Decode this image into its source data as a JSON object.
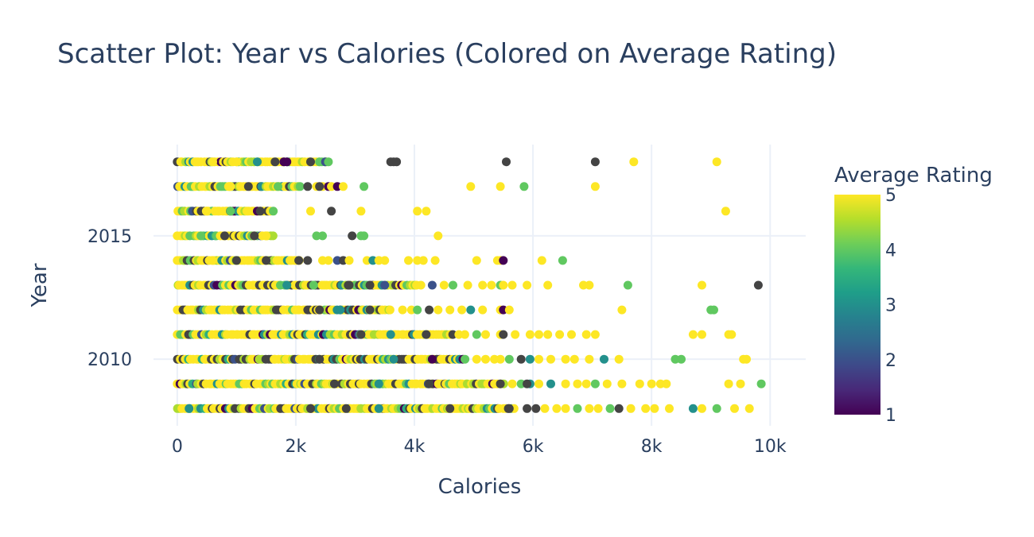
{
  "chart_data": {
    "type": "scatter",
    "title": "Scatter Plot: Year vs Calories (Colored on Average Rating)",
    "xlabel": "Calories",
    "ylabel": "Year",
    "xlim": [
      -400,
      10600
    ],
    "ylim": [
      2007.3,
      2018.7
    ],
    "x_ticks": [
      0,
      2000,
      4000,
      6000,
      8000,
      10000
    ],
    "x_tick_labels": [
      "0",
      "2k",
      "4k",
      "6k",
      "8k",
      "10k"
    ],
    "y_ticks": [
      2010,
      2015
    ],
    "y_tick_labels": [
      "2010",
      "2015"
    ],
    "grid": true,
    "colorbar": {
      "title": "Average Rating",
      "range": [
        1,
        5
      ],
      "ticks": [
        1,
        2,
        3,
        4,
        5
      ],
      "tick_labels": [
        "1",
        "2",
        "3",
        "4",
        "5"
      ],
      "colorscale": [
        "#440154",
        "#482878",
        "#3e4989",
        "#31688e",
        "#26828e",
        "#1f9e89",
        "#35b779",
        "#6ece58",
        "#b5de2b",
        "#fde725"
      ],
      "missing_color": "#444444"
    },
    "points": [
      {
        "year": 2018,
        "max_calories": 2550,
        "samples": [
          [
            2250,
            0
          ],
          [
            2400,
            4
          ],
          [
            2500,
            2
          ],
          [
            2550,
            4
          ],
          [
            1650,
            0
          ],
          [
            1800,
            1
          ],
          [
            1850,
            1
          ],
          [
            3600,
            0
          ],
          [
            3650,
            0
          ],
          [
            3700,
            0
          ],
          [
            5550,
            0
          ],
          [
            7050,
            0
          ],
          [
            7700,
            5
          ],
          [
            9100,
            5
          ],
          [
            300,
            5
          ],
          [
            600,
            5
          ],
          [
            1000,
            5
          ],
          [
            1350,
            3
          ]
        ]
      },
      {
        "year": 2017,
        "max_calories": 2100,
        "samples": [
          [
            2350,
            5
          ],
          [
            2450,
            5
          ],
          [
            2550,
            1
          ],
          [
            2600,
            5
          ],
          [
            2700,
            1
          ],
          [
            2800,
            5
          ],
          [
            3150,
            4
          ],
          [
            2200,
            0
          ],
          [
            2400,
            0
          ],
          [
            4950,
            5
          ],
          [
            5450,
            5
          ],
          [
            5850,
            4
          ],
          [
            7050,
            5
          ],
          [
            1700,
            4
          ],
          [
            1200,
            0
          ],
          [
            900,
            5
          ]
        ]
      },
      {
        "year": 2016,
        "max_calories": 1650,
        "samples": [
          [
            2250,
            5
          ],
          [
            2600,
            0
          ],
          [
            3100,
            5
          ],
          [
            4050,
            5
          ],
          [
            4200,
            5
          ],
          [
            9250,
            5
          ],
          [
            1350,
            1
          ],
          [
            1400,
            0
          ],
          [
            900,
            4
          ],
          [
            500,
            5
          ]
        ]
      },
      {
        "year": 2015,
        "max_calories": 1650,
        "samples": [
          [
            2350,
            4
          ],
          [
            2450,
            4
          ],
          [
            2950,
            0
          ],
          [
            3100,
            4
          ],
          [
            3150,
            4
          ],
          [
            4400,
            5
          ],
          [
            1300,
            0
          ],
          [
            800,
            0
          ],
          [
            400,
            4
          ],
          [
            1500,
            5
          ]
        ]
      },
      {
        "year": 2014,
        "max_calories": 2100,
        "samples": [
          [
            2050,
            0
          ],
          [
            2200,
            0
          ],
          [
            2450,
            5
          ],
          [
            2550,
            5
          ],
          [
            2700,
            2
          ],
          [
            2800,
            0
          ],
          [
            2900,
            5
          ],
          [
            3200,
            5
          ],
          [
            3300,
            3
          ],
          [
            3400,
            5
          ],
          [
            3500,
            5
          ],
          [
            3900,
            5
          ],
          [
            4050,
            5
          ],
          [
            4150,
            5
          ],
          [
            4350,
            5
          ],
          [
            5050,
            5
          ],
          [
            5400,
            5
          ],
          [
            5450,
            5
          ],
          [
            5500,
            1
          ],
          [
            6150,
            5
          ],
          [
            6500,
            4
          ],
          [
            1500,
            0
          ],
          [
            1000,
            0
          ],
          [
            600,
            5
          ]
        ]
      },
      {
        "year": 2013,
        "max_calories": 4100,
        "samples": [
          [
            4300,
            2
          ],
          [
            4500,
            5
          ],
          [
            4650,
            4
          ],
          [
            4900,
            5
          ],
          [
            5150,
            5
          ],
          [
            5300,
            5
          ],
          [
            5450,
            4
          ],
          [
            5500,
            5
          ],
          [
            5650,
            5
          ],
          [
            5900,
            5
          ],
          [
            6250,
            5
          ],
          [
            6850,
            5
          ],
          [
            6950,
            5
          ],
          [
            7600,
            4
          ],
          [
            8850,
            5
          ],
          [
            9800,
            0
          ],
          [
            2900,
            0
          ],
          [
            3250,
            0
          ],
          [
            3500,
            2
          ],
          [
            1850,
            3
          ],
          [
            2300,
            4
          ]
        ]
      },
      {
        "year": 2012,
        "max_calories": 3600,
        "samples": [
          [
            3800,
            5
          ],
          [
            3950,
            5
          ],
          [
            4050,
            4
          ],
          [
            4250,
            0
          ],
          [
            4400,
            5
          ],
          [
            4600,
            5
          ],
          [
            4800,
            5
          ],
          [
            4950,
            3
          ],
          [
            5150,
            5
          ],
          [
            5450,
            5
          ],
          [
            5500,
            1
          ],
          [
            5600,
            5
          ],
          [
            7500,
            5
          ],
          [
            9000,
            4
          ],
          [
            9050,
            4
          ],
          [
            2400,
            0
          ],
          [
            2750,
            3
          ],
          [
            3250,
            0
          ]
        ]
      },
      {
        "year": 2011,
        "max_calories": 4650,
        "samples": [
          [
            4750,
            5
          ],
          [
            4850,
            5
          ],
          [
            5050,
            4
          ],
          [
            5200,
            5
          ],
          [
            5450,
            5
          ],
          [
            5500,
            0
          ],
          [
            5700,
            5
          ],
          [
            5950,
            5
          ],
          [
            6100,
            5
          ],
          [
            6250,
            5
          ],
          [
            6450,
            5
          ],
          [
            6650,
            5
          ],
          [
            6900,
            5
          ],
          [
            7050,
            5
          ],
          [
            8700,
            5
          ],
          [
            8850,
            5
          ],
          [
            9300,
            5
          ],
          [
            9350,
            5
          ],
          [
            3100,
            0
          ],
          [
            3600,
            3
          ],
          [
            4200,
            0
          ]
        ]
      },
      {
        "year": 2010,
        "max_calories": 4900,
        "samples": [
          [
            5050,
            5
          ],
          [
            5200,
            5
          ],
          [
            5350,
            5
          ],
          [
            5450,
            5
          ],
          [
            5600,
            4
          ],
          [
            5800,
            0
          ],
          [
            5950,
            3
          ],
          [
            6100,
            5
          ],
          [
            6300,
            5
          ],
          [
            6550,
            5
          ],
          [
            6700,
            5
          ],
          [
            6950,
            5
          ],
          [
            7200,
            3
          ],
          [
            7450,
            5
          ],
          [
            8400,
            4
          ],
          [
            8500,
            4
          ],
          [
            9550,
            5
          ],
          [
            9600,
            5
          ],
          [
            2400,
            0
          ],
          [
            3650,
            3
          ],
          [
            4300,
            1
          ]
        ]
      },
      {
        "year": 2009,
        "max_calories": 5500,
        "samples": [
          [
            5650,
            5
          ],
          [
            5800,
            4
          ],
          [
            5950,
            3
          ],
          [
            6100,
            5
          ],
          [
            6300,
            3
          ],
          [
            6550,
            5
          ],
          [
            6750,
            5
          ],
          [
            6900,
            5
          ],
          [
            7050,
            4
          ],
          [
            7250,
            5
          ],
          [
            7500,
            5
          ],
          [
            7800,
            5
          ],
          [
            8000,
            5
          ],
          [
            8150,
            5
          ],
          [
            8250,
            5
          ],
          [
            9300,
            5
          ],
          [
            9500,
            5
          ],
          [
            9850,
            4
          ],
          [
            2650,
            0
          ],
          [
            3400,
            3
          ],
          [
            4250,
            0
          ],
          [
            5450,
            0
          ],
          [
            5900,
            0
          ]
        ]
      },
      {
        "year": 2008,
        "max_calories": 5700,
        "samples": [
          [
            5900,
            0
          ],
          [
            6050,
            0
          ],
          [
            6200,
            5
          ],
          [
            6400,
            5
          ],
          [
            6550,
            5
          ],
          [
            6750,
            4
          ],
          [
            6950,
            5
          ],
          [
            7100,
            5
          ],
          [
            7300,
            4
          ],
          [
            7450,
            0
          ],
          [
            7650,
            5
          ],
          [
            7900,
            5
          ],
          [
            8050,
            5
          ],
          [
            8300,
            5
          ],
          [
            8700,
            3
          ],
          [
            8850,
            5
          ],
          [
            9100,
            4
          ],
          [
            9400,
            5
          ],
          [
            9650,
            5
          ],
          [
            5600,
            0
          ],
          [
            4600,
            0
          ],
          [
            3400,
            3
          ],
          [
            2850,
            0
          ],
          [
            2250,
            0
          ],
          [
            200,
            3
          ]
        ]
      }
    ]
  }
}
